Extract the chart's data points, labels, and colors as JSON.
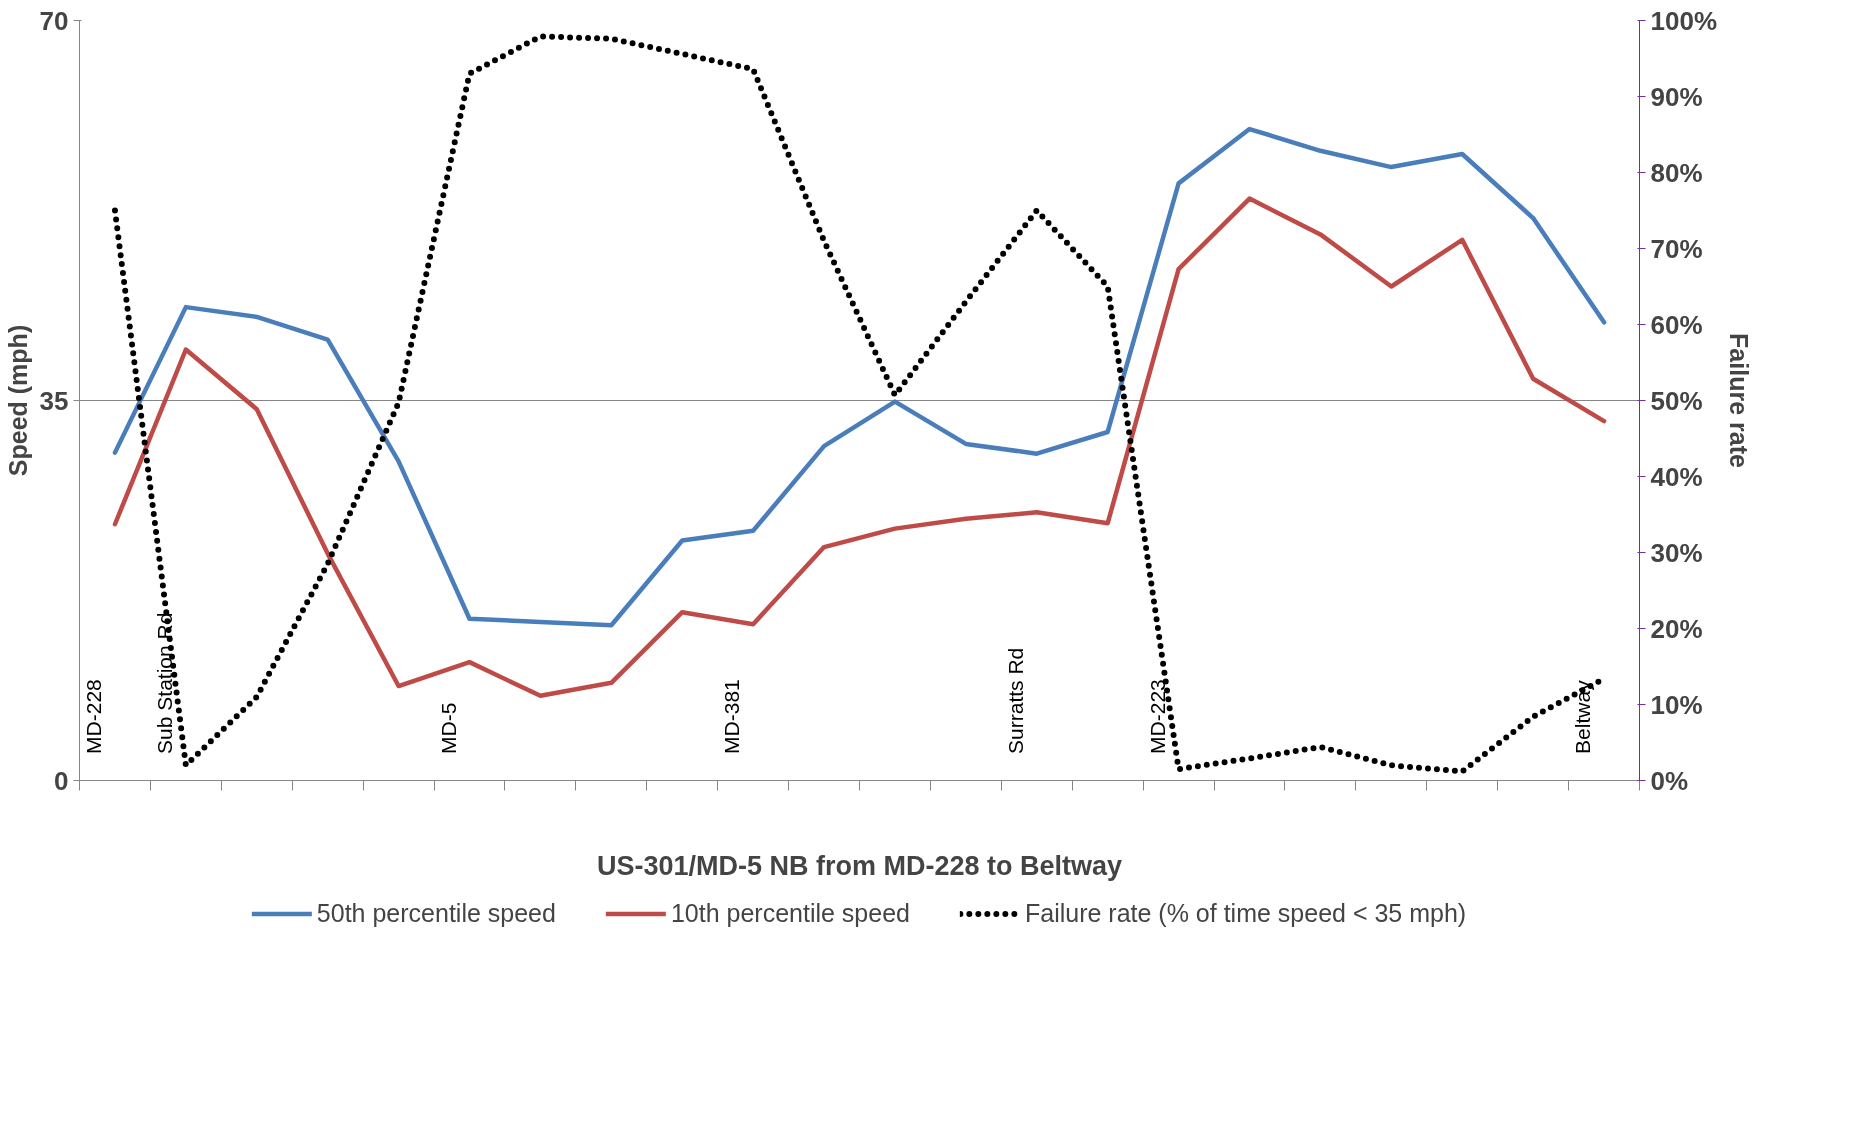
{
  "chart_data": {
    "type": "line",
    "xlabel": "US-301/MD-5 NB from MD-228 to Beltway",
    "ylabel": "Speed (mph)",
    "y2label": "Failure rate",
    "categories": [
      "MD-228",
      "Sub Station Rd",
      null,
      null,
      null,
      "MD-5",
      null,
      null,
      null,
      "MD-381",
      null,
      null,
      null,
      "Surratts Rd",
      null,
      "MD-223",
      null,
      null,
      null,
      null,
      null,
      "Beltway"
    ],
    "ylim": [
      0,
      70
    ],
    "yticks": [
      0,
      35,
      70
    ],
    "y2lim": [
      0,
      100
    ],
    "y2ticks": [
      {
        "value": 0,
        "label": "0%"
      },
      {
        "value": 10,
        "label": "10%"
      },
      {
        "value": 20,
        "label": "20%"
      },
      {
        "value": 30,
        "label": "30%"
      },
      {
        "value": 40,
        "label": "40%"
      },
      {
        "value": 50,
        "label": "50%"
      },
      {
        "value": 60,
        "label": "60%"
      },
      {
        "value": 70,
        "label": "70%"
      },
      {
        "value": 80,
        "label": "80%"
      },
      {
        "value": 90,
        "label": "90%"
      },
      {
        "value": 100,
        "label": "100%"
      }
    ],
    "grid": "y",
    "legend": "bottom",
    "marker": "none",
    "series": [
      {
        "name": "50th percentile speed",
        "color": "#4a7ebb",
        "line_style": "solid",
        "values": [
          30.2,
          43.6,
          42.7,
          40.6,
          29.4,
          14.9,
          14.6,
          14.3,
          22.1,
          23.0,
          30.8,
          34.9,
          31.0,
          30.1,
          32.1,
          55.0,
          60.0,
          58.0,
          56.5,
          57.7,
          51.8,
          42.2
        ]
      },
      {
        "name": "10th percentile speed",
        "color": "#be4b48",
        "line_style": "solid",
        "values": [
          23.6,
          39.7,
          34.2,
          20.9,
          8.7,
          10.9,
          7.8,
          9.0,
          15.5,
          14.4,
          21.5,
          23.2,
          24.1,
          24.7,
          23.7,
          47.1,
          53.6,
          50.3,
          45.5,
          49.8,
          37.0,
          33.1
        ]
      },
      {
        "name": "Failure rate (% of time speed < 35 mph)",
        "color": "#000000",
        "line_style": "dotted",
        "axis": "y2",
        "values": [
          75,
          2,
          11,
          28.5,
          49.7,
          93,
          97.9,
          97.6,
          95.6,
          93.6,
          71,
          50.7,
          63,
          75,
          65,
          1.5,
          2.9,
          4.4,
          2.0,
          1.2,
          8.4,
          13.4
        ]
      }
    ]
  }
}
